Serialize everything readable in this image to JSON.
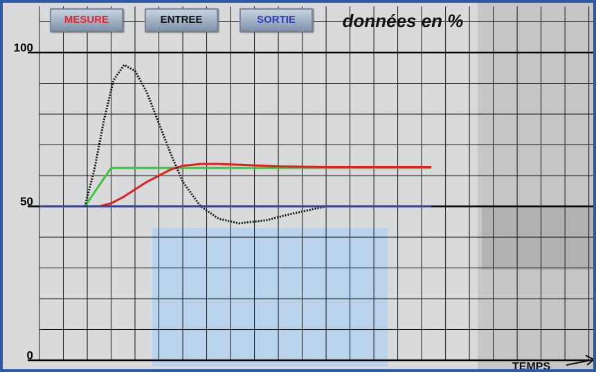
{
  "buttons": [
    {
      "label": "MESURE",
      "color": "#e8242a"
    },
    {
      "label": "ENTREE",
      "color": "#111111"
    },
    {
      "label": "SORTIE",
      "color": "#2d3fb5"
    }
  ],
  "chart_data": {
    "type": "line",
    "title": "données en %",
    "x_label": "TEMPS",
    "xlim": [
      0,
      23.3
    ],
    "ylim": [
      0,
      115
    ],
    "yticks": [
      0,
      50,
      100
    ],
    "minor_yticks": [
      10,
      20,
      30,
      40,
      60,
      70,
      80,
      90,
      110
    ],
    "xgrid": [
      0,
      1,
      2,
      3,
      4,
      5,
      6,
      7,
      8,
      9,
      10,
      11,
      12,
      13,
      14,
      15,
      16,
      17,
      18,
      19,
      20,
      21,
      22,
      23
    ],
    "grid": true,
    "series": [
      {
        "color": "#3cc43c",
        "x": [
          0,
          1.9,
          3,
          16.4
        ],
        "values": [
          50,
          50,
          62.5,
          62.5
        ]
      },
      {
        "name": "MESURE",
        "color": "#e02020",
        "x": [
          0,
          2.5,
          3,
          3.5,
          4,
          4.5,
          5,
          5.5,
          6,
          6.75,
          7.5,
          8.5,
          10,
          12,
          16.4
        ],
        "values": [
          50,
          50,
          51,
          53,
          55.5,
          58,
          60,
          62,
          63.2,
          63.8,
          63.8,
          63.5,
          63,
          62.8,
          62.8
        ]
      },
      {
        "name": "ENTREE",
        "color": "#111111",
        "dotted": true,
        "x": [
          1.9,
          2.3,
          2.7,
          3.1,
          3.55,
          4,
          4.5,
          5,
          5.5,
          6,
          6.75,
          7.5,
          8.35,
          9.5,
          10.5,
          12,
          14,
          16.4
        ],
        "values": [
          50,
          62,
          78,
          91,
          96,
          94,
          87,
          77,
          67,
          58,
          50,
          46,
          44.5,
          45.5,
          47.5,
          50,
          50,
          50
        ]
      },
      {
        "name": "SORTIE",
        "color": "#2d3fb5",
        "x": [
          0,
          16.4
        ],
        "values": [
          50,
          50
        ]
      }
    ]
  }
}
